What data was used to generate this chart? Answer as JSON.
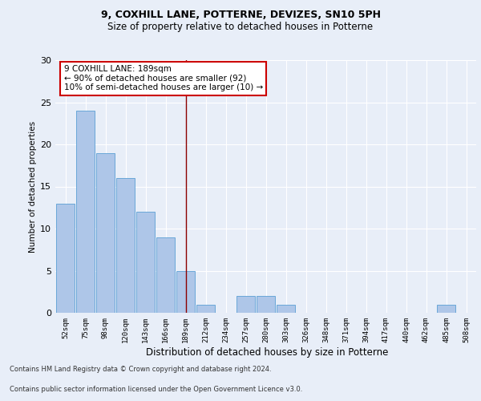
{
  "title1": "9, COXHILL LANE, POTTERNE, DEVIZES, SN10 5PH",
  "title2": "Size of property relative to detached houses in Potterne",
  "xlabel": "Distribution of detached houses by size in Potterne",
  "ylabel": "Number of detached properties",
  "categories": [
    "52sqm",
    "75sqm",
    "98sqm",
    "120sqm",
    "143sqm",
    "166sqm",
    "189sqm",
    "212sqm",
    "234sqm",
    "257sqm",
    "280sqm",
    "303sqm",
    "326sqm",
    "348sqm",
    "371sqm",
    "394sqm",
    "417sqm",
    "440sqm",
    "462sqm",
    "485sqm",
    "508sqm"
  ],
  "values": [
    13,
    24,
    19,
    16,
    12,
    9,
    5,
    1,
    0,
    2,
    2,
    1,
    0,
    0,
    0,
    0,
    0,
    0,
    0,
    1,
    0
  ],
  "bar_color": "#aec6e8",
  "bar_edge_color": "#5a9fd4",
  "highlight_index": 6,
  "highlight_line_color": "#8b0000",
  "annotation_text": "9 COXHILL LANE: 189sqm\n← 90% of detached houses are smaller (92)\n10% of semi-detached houses are larger (10) →",
  "annotation_box_color": "#ffffff",
  "annotation_box_edge": "#cc0000",
  "ylim": [
    0,
    30
  ],
  "yticks": [
    0,
    5,
    10,
    15,
    20,
    25,
    30
  ],
  "footer1": "Contains HM Land Registry data © Crown copyright and database right 2024.",
  "footer2": "Contains public sector information licensed under the Open Government Licence v3.0.",
  "background_color": "#e8eef8",
  "plot_background": "#e8eef8",
  "grid_color": "#ffffff"
}
